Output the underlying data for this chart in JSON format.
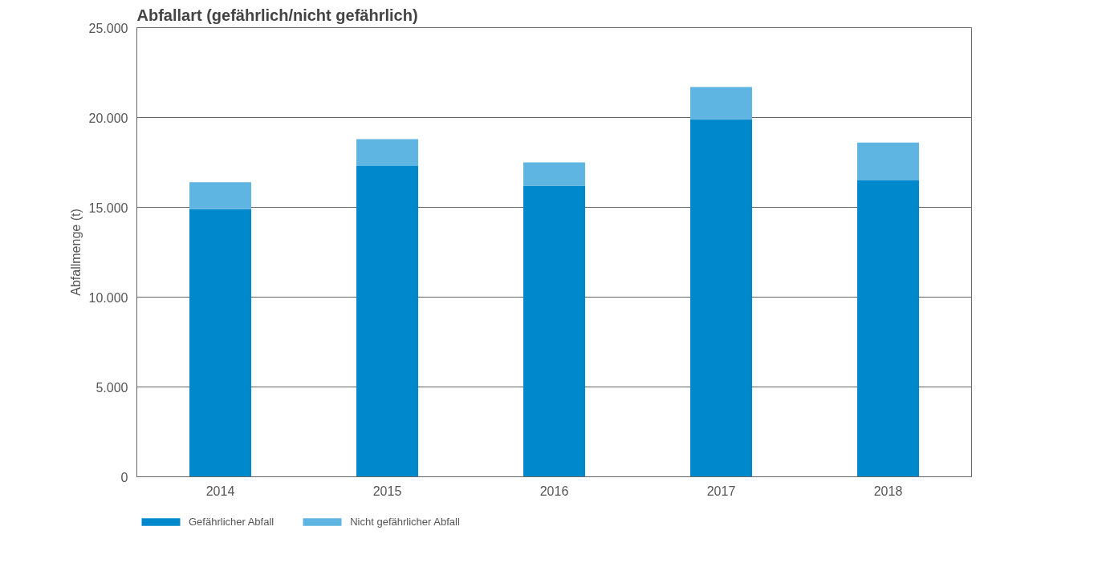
{
  "chart_data": {
    "type": "bar",
    "title": "Abfallart (gefährlich/nicht gefährlich)",
    "ylabel": "Abfallmenge (t)",
    "categories": [
      "2014",
      "2015",
      "2016",
      "2017",
      "2018"
    ],
    "stacked": true,
    "series": [
      {
        "name": "Gefährlicher Abfall",
        "color": "#0088cc",
        "values": [
          14900,
          17300,
          16200,
          19900,
          16500
        ]
      },
      {
        "name": "Nicht gefährlicher Abfall",
        "color": "#5eb5e2",
        "values": [
          1500,
          1500,
          1300,
          1800,
          2100
        ]
      }
    ],
    "ylim": [
      0,
      25000
    ],
    "yticks": [
      0,
      {
        "value": 5000,
        "label": "5.000"
      },
      {
        "value": 10000,
        "label": "10.000"
      },
      {
        "value": 15000,
        "label": "15.000"
      },
      {
        "value": 20000,
        "label": "20.000"
      },
      {
        "value": 25000,
        "label": "25.000"
      }
    ],
    "grid": "y",
    "legend": "bottom left"
  }
}
